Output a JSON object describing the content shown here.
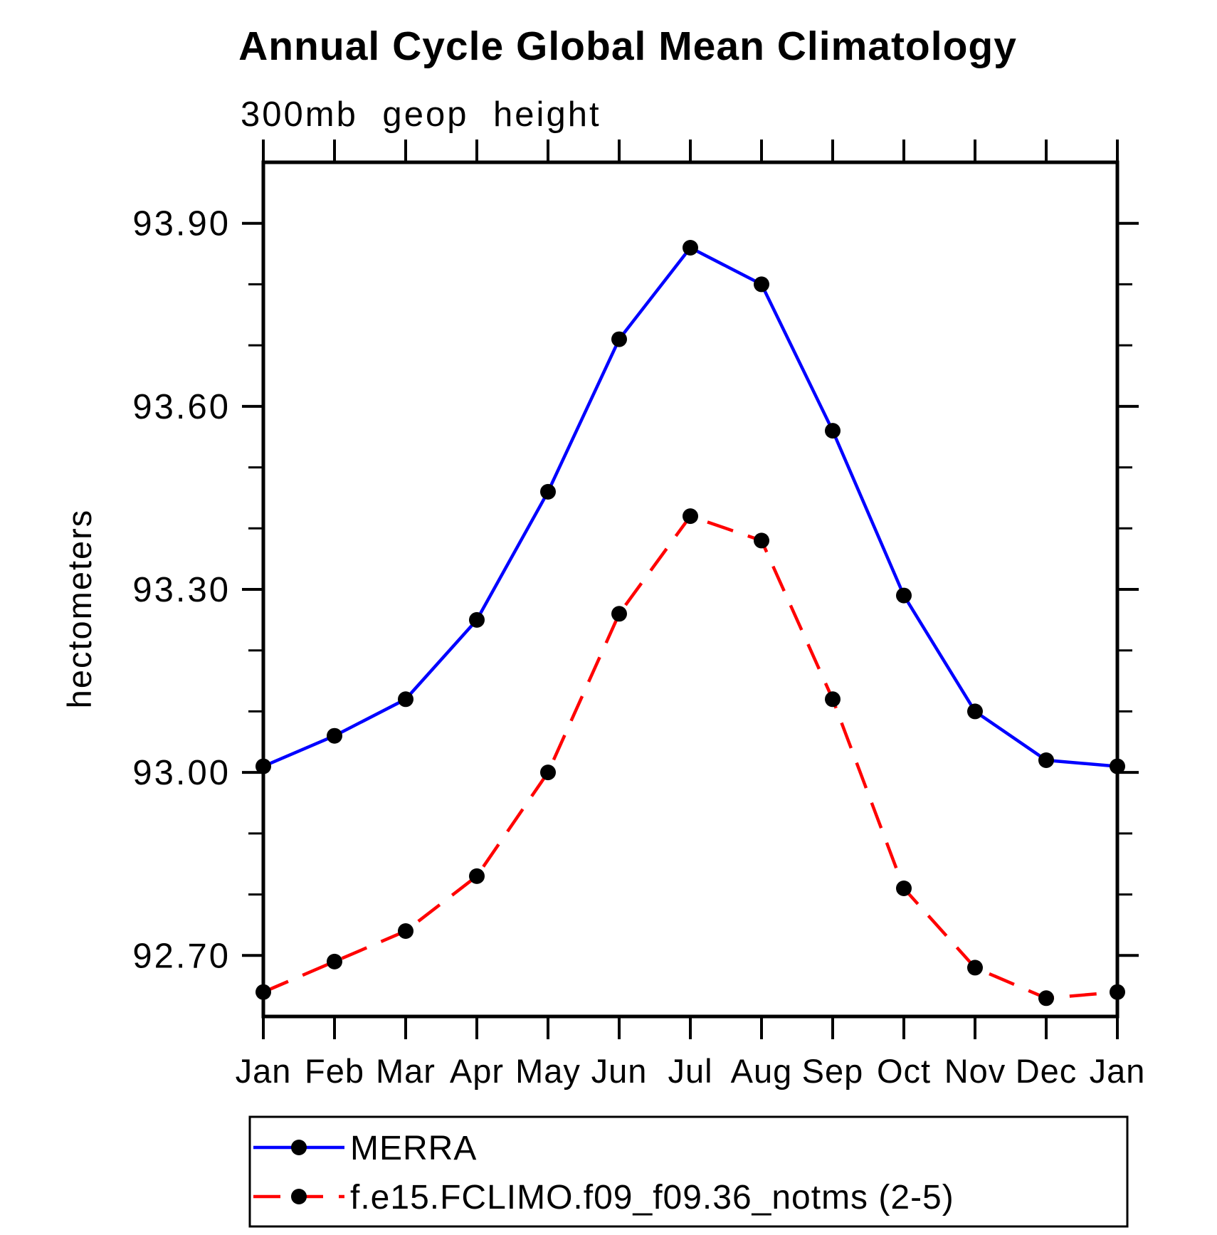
{
  "header": {
    "title": "Annual Cycle Global Mean Climatology"
  },
  "chart_data": {
    "type": "line",
    "title": "Annual Cycle Global Mean Climatology",
    "subtitle": "300mb geop height",
    "ylabel": "hectometers",
    "xlabel": "",
    "categories": [
      "Jan",
      "Feb",
      "Mar",
      "Apr",
      "May",
      "Jun",
      "Jul",
      "Aug",
      "Sep",
      "Oct",
      "Nov",
      "Dec",
      "Jan"
    ],
    "ylim": [
      92.6,
      94.0
    ],
    "y_major_ticks": [
      93.9,
      93.6,
      93.3,
      93.0,
      92.7
    ],
    "y_tick_labels": [
      "93.90",
      "93.60",
      "93.30",
      "93.00",
      "92.70"
    ],
    "y_minor_step": 0.1,
    "grid": false,
    "legend_position": "bottom-left",
    "series": [
      {
        "name": "MERRA",
        "color": "#0000ff",
        "line_style": "solid",
        "marker": "black-circle",
        "values": [
          93.01,
          93.06,
          93.12,
          93.25,
          93.46,
          93.71,
          93.86,
          93.8,
          93.56,
          93.29,
          93.1,
          93.02,
          93.01
        ]
      },
      {
        "name": "f.e15.FCLIMO.f09_f09.36_notms (2-5)",
        "color": "#ff0000",
        "line_style": "dashed",
        "marker": "black-circle",
        "values": [
          92.64,
          92.69,
          92.74,
          92.83,
          93.0,
          93.26,
          93.42,
          93.38,
          93.12,
          92.81,
          92.68,
          92.63,
          92.64
        ]
      }
    ]
  },
  "colors": {
    "background": "#ffffff",
    "axis": "#000000",
    "marker": "#000000",
    "merra_blue": "#0000ff",
    "model_red": "#ff0000"
  }
}
